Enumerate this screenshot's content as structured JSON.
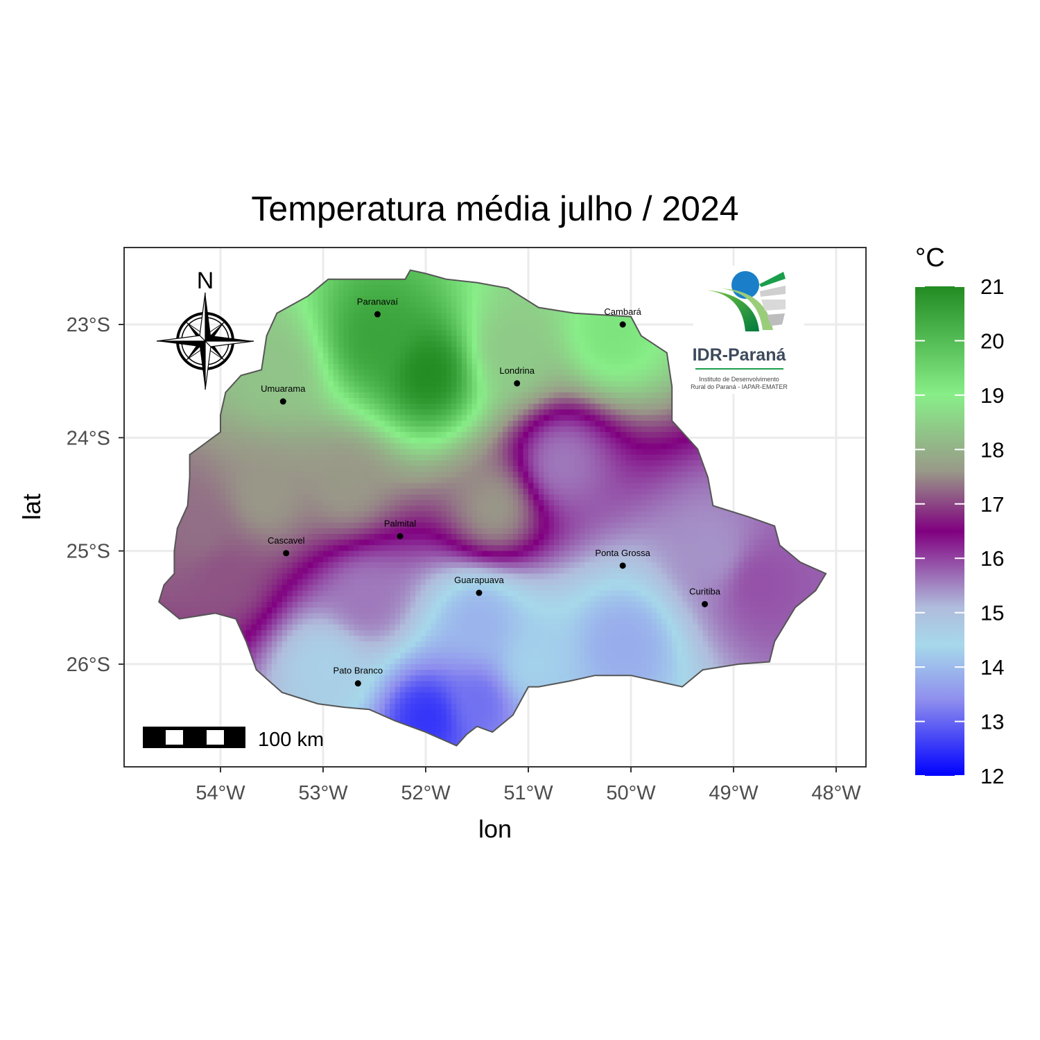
{
  "chart_data": {
    "type": "heatmap",
    "title": "Temperatura média julho / 2024",
    "xlabel": "lon",
    "ylabel": "lat",
    "x_ticks": [
      "54°W",
      "53°W",
      "52°W",
      "51°W",
      "50°W",
      "49°W",
      "48°W"
    ],
    "y_ticks": [
      "23°S",
      "24°S",
      "25°S",
      "26°S"
    ],
    "xlim": [
      -54.95,
      -47.7
    ],
    "ylim": [
      -26.9,
      -22.3
    ],
    "grid": true,
    "legend": {
      "title": "°C",
      "position": "right",
      "ticks": [
        "21",
        "20",
        "19",
        "18",
        "17",
        "16",
        "15",
        "14",
        "13",
        "12"
      ],
      "range": [
        12,
        21
      ],
      "colors": [
        {
          "value": 12,
          "color": "#0000ff"
        },
        {
          "value": 13.4,
          "color": "#8f8fee"
        },
        {
          "value": 14.4,
          "color": "#a6d8ea"
        },
        {
          "value": 15.1,
          "color": "#b0bcdc"
        },
        {
          "value": 16.5,
          "color": "#800080"
        },
        {
          "value": 17.6,
          "color": "#999988"
        },
        {
          "value": 19,
          "color": "#88ee88"
        },
        {
          "value": 21,
          "color": "#228b22"
        }
      ]
    },
    "cities": [
      {
        "name": "Paranavaí",
        "lon": -52.47,
        "lat": -22.91
      },
      {
        "name": "Cambará",
        "lon": -50.08,
        "lat": -23.0
      },
      {
        "name": "Londrina",
        "lon": -51.11,
        "lat": -23.52
      },
      {
        "name": "Umuarama",
        "lon": -53.39,
        "lat": -23.68
      },
      {
        "name": "Palmital",
        "lon": -52.25,
        "lat": -24.87
      },
      {
        "name": "Cascavel",
        "lon": -53.36,
        "lat": -25.02
      },
      {
        "name": "Ponta Grossa",
        "lon": -50.08,
        "lat": -25.13
      },
      {
        "name": "Guarapuava",
        "lon": -51.48,
        "lat": -25.37
      },
      {
        "name": "Curitiba",
        "lon": -49.28,
        "lat": -25.47
      },
      {
        "name": "Pato Branco",
        "lon": -52.66,
        "lat": -26.17
      }
    ],
    "temperature_centers": [
      {
        "lon": -52.5,
        "lat": -23.1,
        "temp": 20.5
      },
      {
        "lon": -52.0,
        "lat": -23.4,
        "temp": 21.0
      },
      {
        "lon": -50.2,
        "lat": -23.05,
        "temp": 19.2
      },
      {
        "lon": -51.2,
        "lat": -23.2,
        "temp": 18.4
      },
      {
        "lon": -53.5,
        "lat": -23.4,
        "temp": 18.3
      },
      {
        "lon": -53.6,
        "lat": -24.5,
        "temp": 17.6
      },
      {
        "lon": -51.35,
        "lat": -24.6,
        "temp": 17.6
      },
      {
        "lon": -54.2,
        "lat": -24.8,
        "temp": 17.3
      },
      {
        "lon": -52.8,
        "lat": -24.4,
        "temp": 17.6
      },
      {
        "lon": -54.0,
        "lat": -25.2,
        "temp": 17.1
      },
      {
        "lon": -52.6,
        "lat": -25.4,
        "temp": 15.6
      },
      {
        "lon": -50.7,
        "lat": -24.2,
        "temp": 15.6
      },
      {
        "lon": -49.2,
        "lat": -25.0,
        "temp": 15.4
      },
      {
        "lon": -48.8,
        "lat": -25.25,
        "temp": 15.9
      },
      {
        "lon": -51.5,
        "lat": -25.6,
        "temp": 13.9
      },
      {
        "lon": -50.1,
        "lat": -25.8,
        "temp": 13.8
      },
      {
        "lon": -51.0,
        "lat": -26.0,
        "temp": 14.3
      },
      {
        "lon": -52.0,
        "lat": -26.45,
        "temp": 12.5
      },
      {
        "lon": -51.5,
        "lat": -26.3,
        "temp": 13.1
      },
      {
        "lon": -53.0,
        "lat": -26.0,
        "temp": 14.6
      }
    ],
    "outline": [
      [
        -54.6,
        -25.45
      ],
      [
        -54.55,
        -25.3
      ],
      [
        -54.45,
        -25.2
      ],
      [
        -54.45,
        -25.0
      ],
      [
        -54.42,
        -24.8
      ],
      [
        -54.32,
        -24.6
      ],
      [
        -54.3,
        -24.35
      ],
      [
        -54.3,
        -24.15
      ],
      [
        -54.15,
        -24.05
      ],
      [
        -54.0,
        -23.95
      ],
      [
        -54.0,
        -23.8
      ],
      [
        -53.95,
        -23.6
      ],
      [
        -53.8,
        -23.45
      ],
      [
        -53.6,
        -23.4
      ],
      [
        -53.55,
        -23.1
      ],
      [
        -53.45,
        -22.9
      ],
      [
        -53.15,
        -22.75
      ],
      [
        -52.95,
        -22.6
      ],
      [
        -52.6,
        -22.6
      ],
      [
        -52.2,
        -22.6
      ],
      [
        -52.15,
        -22.52
      ],
      [
        -52.0,
        -22.55
      ],
      [
        -51.8,
        -22.6
      ],
      [
        -51.5,
        -22.63
      ],
      [
        -51.2,
        -22.68
      ],
      [
        -50.9,
        -22.85
      ],
      [
        -50.55,
        -22.9
      ],
      [
        -50.2,
        -22.92
      ],
      [
        -50.0,
        -22.93
      ],
      [
        -49.9,
        -23.1
      ],
      [
        -49.65,
        -23.25
      ],
      [
        -49.6,
        -23.55
      ],
      [
        -49.6,
        -23.85
      ],
      [
        -49.35,
        -24.1
      ],
      [
        -49.25,
        -24.35
      ],
      [
        -49.2,
        -24.6
      ],
      [
        -48.85,
        -24.7
      ],
      [
        -48.6,
        -24.78
      ],
      [
        -48.55,
        -24.95
      ],
      [
        -48.35,
        -25.1
      ],
      [
        -48.1,
        -25.2
      ],
      [
        -48.2,
        -25.35
      ],
      [
        -48.4,
        -25.5
      ],
      [
        -48.6,
        -25.8
      ],
      [
        -48.65,
        -25.98
      ],
      [
        -48.95,
        -26.0
      ],
      [
        -49.3,
        -26.05
      ],
      [
        -49.5,
        -26.2
      ],
      [
        -49.75,
        -26.15
      ],
      [
        -50.0,
        -26.1
      ],
      [
        -50.35,
        -26.1
      ],
      [
        -50.6,
        -26.15
      ],
      [
        -50.9,
        -26.2
      ],
      [
        -51.0,
        -26.2
      ],
      [
        -51.15,
        -26.45
      ],
      [
        -51.35,
        -26.6
      ],
      [
        -51.5,
        -26.55
      ],
      [
        -51.6,
        -26.62
      ],
      [
        -51.7,
        -26.72
      ],
      [
        -52.0,
        -26.6
      ],
      [
        -52.3,
        -26.5
      ],
      [
        -52.55,
        -26.4
      ],
      [
        -52.8,
        -26.38
      ],
      [
        -53.05,
        -26.35
      ],
      [
        -53.4,
        -26.25
      ],
      [
        -53.65,
        -26.05
      ],
      [
        -53.75,
        -25.8
      ],
      [
        -53.85,
        -25.6
      ],
      [
        -54.05,
        -25.55
      ],
      [
        -54.4,
        -25.6
      ],
      [
        -54.6,
        -25.45
      ]
    ]
  },
  "scale_bar": {
    "label": "100 km"
  },
  "north_arrow": {
    "label": "N"
  },
  "logo": {
    "name": "IDR-Paraná",
    "line1": "Instituto de Desenvolvimento",
    "line2": "Rural do Paraná - IAPAR-EMATER"
  }
}
